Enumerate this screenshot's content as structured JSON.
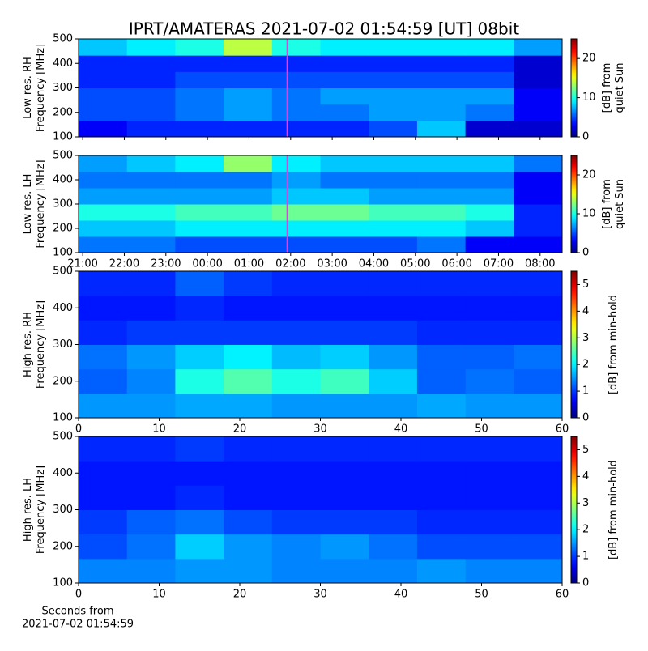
{
  "title": "IPRT/AMATERAS 2021-07-02 01:54:59 [UT]   08bit",
  "chart_data": [
    {
      "type": "heatmap",
      "ylabel": [
        "Low res. RH",
        "Frequency [MHz]"
      ],
      "colorbar_label": [
        "[dB] from",
        "quiet Sun"
      ],
      "xlim": [
        20.9,
        32.53
      ],
      "xticks": [
        {
          "value": 21,
          "label": "21:00"
        },
        {
          "value": 22,
          "label": "22:00"
        },
        {
          "value": 23,
          "label": "23:00"
        },
        {
          "value": 24,
          "label": "00:00"
        },
        {
          "value": 25,
          "label": "01:00"
        },
        {
          "value": 26,
          "label": "02:00"
        },
        {
          "value": 27,
          "label": "03:00"
        },
        {
          "value": 28,
          "label": "04:00"
        },
        {
          "value": 29,
          "label": "05:00"
        },
        {
          "value": 30,
          "label": "06:00"
        },
        {
          "value": 31,
          "label": "07:00"
        },
        {
          "value": 32,
          "label": "08:00"
        }
      ],
      "show_xtick_labels": false,
      "marker_x": 25.92,
      "marker_color": "#e040e0",
      "ylim": [
        100,
        500
      ],
      "yticks": [
        100,
        200,
        300,
        400,
        500
      ],
      "clim": [
        0,
        25
      ],
      "cticks": [
        0,
        10,
        20
      ],
      "z": [
        [
          3,
          4,
          4,
          4,
          4,
          4,
          5,
          8,
          2,
          2
        ],
        [
          5,
          5,
          6,
          7,
          6,
          6,
          7,
          7,
          6,
          3
        ],
        [
          5,
          5,
          6,
          7,
          6,
          7,
          7,
          7,
          7,
          3
        ],
        [
          4,
          4,
          5,
          5,
          5,
          5,
          5,
          5,
          5,
          2
        ],
        [
          4,
          4,
          4,
          4,
          4,
          4,
          4,
          4,
          4,
          2
        ],
        [
          8,
          9,
          10,
          14,
          10,
          9,
          9,
          9,
          9,
          7
        ]
      ]
    },
    {
      "type": "heatmap",
      "ylabel": [
        "Low res. LH",
        "Frequency [MHz]"
      ],
      "colorbar_label": [
        "[dB] from",
        "quiet Sun"
      ],
      "xlim": [
        20.9,
        32.53
      ],
      "xticks": [
        {
          "value": 21,
          "label": "21:00"
        },
        {
          "value": 22,
          "label": "22:00"
        },
        {
          "value": 23,
          "label": "23:00"
        },
        {
          "value": 24,
          "label": "00:00"
        },
        {
          "value": 25,
          "label": "01:00"
        },
        {
          "value": 26,
          "label": "02:00"
        },
        {
          "value": 27,
          "label": "03:00"
        },
        {
          "value": 28,
          "label": "04:00"
        },
        {
          "value": 29,
          "label": "05:00"
        },
        {
          "value": 30,
          "label": "06:00"
        },
        {
          "value": 31,
          "label": "07:00"
        },
        {
          "value": 32,
          "label": "08:00"
        }
      ],
      "show_xtick_labels": true,
      "marker_x": 25.92,
      "marker_color": "#e040e0",
      "ylim": [
        100,
        500
      ],
      "yticks": [
        100,
        200,
        300,
        400,
        500
      ],
      "clim": [
        0,
        25
      ],
      "cticks": [
        0,
        10,
        20
      ],
      "z": [
        [
          6,
          6,
          5,
          5,
          5,
          5,
          5,
          6,
          3,
          3
        ],
        [
          8,
          8,
          9,
          9,
          9,
          9,
          9,
          9,
          8,
          4
        ],
        [
          10,
          10,
          11,
          11,
          12,
          12,
          11,
          11,
          10,
          4
        ],
        [
          7,
          7,
          7,
          7,
          8,
          8,
          7,
          7,
          7,
          3
        ],
        [
          6,
          6,
          6,
          6,
          7,
          6,
          6,
          6,
          6,
          3
        ],
        [
          7,
          8,
          9,
          13,
          9,
          8,
          8,
          8,
          8,
          6
        ]
      ]
    },
    {
      "type": "heatmap",
      "ylabel": [
        "High res. RH",
        "Frequency [MHz]"
      ],
      "colorbar_label": [
        "[dB] from min-hold"
      ],
      "xlim": [
        0,
        60
      ],
      "xticks": [
        0,
        10,
        20,
        30,
        40,
        50,
        60
      ],
      "show_xtick_labels": true,
      "ylim": [
        100,
        500
      ],
      "yticks": [
        100,
        200,
        300,
        400,
        500
      ],
      "clim": [
        0,
        5.5
      ],
      "cticks": [
        0,
        1,
        2,
        3,
        4,
        5
      ],
      "z": [
        [
          1.5,
          1.5,
          1.6,
          1.6,
          1.5,
          1.5,
          1.5,
          1.6,
          1.5,
          1.5
        ],
        [
          1.2,
          1.4,
          2.2,
          2.5,
          2.2,
          2.4,
          1.8,
          1.2,
          1.3,
          1.2
        ],
        [
          1.3,
          1.5,
          1.8,
          2.0,
          1.7,
          1.8,
          1.5,
          1.2,
          1.2,
          1.3
        ],
        [
          0.9,
          1.0,
          1.0,
          1.0,
          1.0,
          1.0,
          1.0,
          0.9,
          0.9,
          0.9
        ],
        [
          0.8,
          0.8,
          0.9,
          0.8,
          0.8,
          0.8,
          0.8,
          0.8,
          0.8,
          0.8
        ],
        [
          0.9,
          0.9,
          1.2,
          1.0,
          0.9,
          0.9,
          0.9,
          0.9,
          0.9,
          0.9
        ]
      ]
    },
    {
      "type": "heatmap",
      "ylabel": [
        "High res. LH",
        "Frequency [MHz]"
      ],
      "colorbar_label": [
        "[dB] from min-hold"
      ],
      "xlim": [
        0,
        60
      ],
      "xticks": [
        0,
        10,
        20,
        30,
        40,
        50,
        60
      ],
      "show_xtick_labels": true,
      "xlabel": [
        "Seconds from",
        "2021-07-02 01:54:59"
      ],
      "ylim": [
        100,
        500
      ],
      "yticks": [
        100,
        200,
        300,
        400,
        500
      ],
      "clim": [
        0,
        5.5
      ],
      "cticks": [
        0,
        1,
        2,
        3,
        4,
        5
      ],
      "z": [
        [
          1.4,
          1.4,
          1.5,
          1.5,
          1.4,
          1.4,
          1.4,
          1.5,
          1.4,
          1.4
        ],
        [
          1.1,
          1.3,
          1.8,
          1.5,
          1.4,
          1.5,
          1.3,
          1.1,
          1.1,
          1.1
        ],
        [
          1.0,
          1.2,
          1.3,
          1.1,
          1.0,
          1.0,
          1.0,
          0.9,
          0.9,
          0.9
        ],
        [
          0.8,
          0.8,
          0.9,
          0.8,
          0.8,
          0.8,
          0.8,
          0.8,
          0.8,
          0.8
        ],
        [
          0.8,
          0.8,
          0.8,
          0.8,
          0.8,
          0.8,
          0.8,
          0.8,
          0.8,
          0.8
        ],
        [
          0.9,
          0.9,
          1.0,
          0.9,
          0.9,
          0.9,
          0.9,
          0.9,
          0.9,
          0.9
        ]
      ]
    }
  ]
}
